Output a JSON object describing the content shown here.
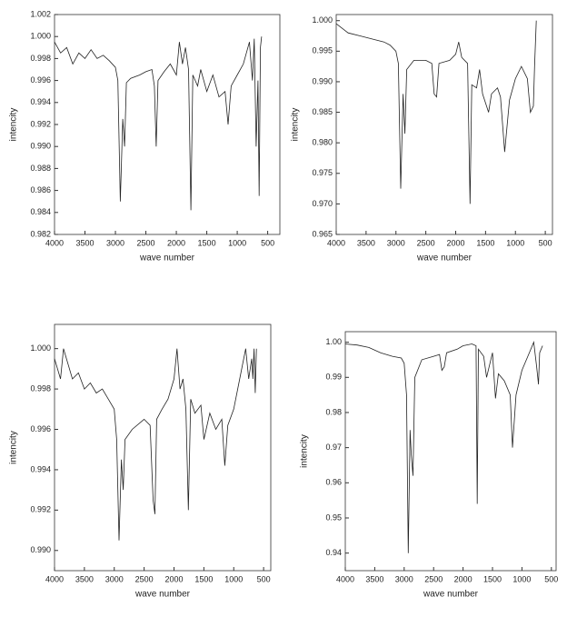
{
  "chart_data": [
    {
      "type": "line",
      "xlabel": "wave number",
      "ylabel": "intencity",
      "color": "#222222",
      "grid": false,
      "xlim": [
        4000,
        300
      ],
      "xticks": [
        4000,
        3500,
        3000,
        2500,
        2000,
        1500,
        1000,
        500
      ],
      "ylim": [
        0.982,
        1.002
      ],
      "yticks": [
        0.982,
        0.984,
        0.986,
        0.988,
        {
          "value": 0.99,
          "label": "0.990"
        },
        0.992,
        0.994,
        0.996,
        0.998,
        {
          "value": 1,
          "label": "1.000"
        },
        1.002
      ],
      "x": [
        4000,
        3900,
        3800,
        3700,
        3600,
        3500,
        3400,
        3300,
        3200,
        3100,
        3000,
        2960,
        2920,
        2880,
        2850,
        2820,
        2750,
        2600,
        2500,
        2400,
        2360,
        2330,
        2300,
        2200,
        2100,
        2000,
        1950,
        1900,
        1850,
        1800,
        1760,
        1730,
        1650,
        1600,
        1500,
        1400,
        1300,
        1200,
        1150,
        1100,
        1000,
        900,
        800,
        750,
        720,
        690,
        660,
        640,
        620,
        600
      ],
      "values": [
        0.9995,
        0.9985,
        0.999,
        0.9975,
        0.9985,
        0.998,
        0.9988,
        0.998,
        0.9983,
        0.9978,
        0.9972,
        0.996,
        0.985,
        0.9925,
        0.99,
        0.9958,
        0.9962,
        0.9965,
        0.9968,
        0.997,
        0.9955,
        0.99,
        0.996,
        0.9968,
        0.9975,
        0.9965,
        0.9995,
        0.9975,
        0.999,
        0.997,
        0.9842,
        0.9965,
        0.9955,
        0.997,
        0.995,
        0.9965,
        0.9945,
        0.995,
        0.992,
        0.9955,
        0.9965,
        0.9975,
        0.9995,
        0.996,
        0.9998,
        0.99,
        0.996,
        0.9855,
        0.999,
        1.0
      ]
    },
    {
      "type": "line",
      "xlabel": "wave number",
      "ylabel": "intencity",
      "color": "#222222",
      "grid": false,
      "xlim": [
        4000,
        380
      ],
      "xticks": [
        4000,
        3500,
        3000,
        2500,
        2000,
        1500,
        1000,
        500
      ],
      "ylim": [
        0.965,
        1.001
      ],
      "yticks": [
        0.965,
        {
          "value": 0.97,
          "label": "0.970"
        },
        0.975,
        {
          "value": 0.98,
          "label": "0.980"
        },
        0.985,
        {
          "value": 0.99,
          "label": "0.990"
        },
        0.995,
        {
          "value": 1,
          "label": "1.000"
        }
      ],
      "x": [
        4000,
        3800,
        3600,
        3400,
        3200,
        3100,
        3000,
        2960,
        2920,
        2880,
        2850,
        2820,
        2700,
        2500,
        2400,
        2360,
        2320,
        2280,
        2100,
        2000,
        1950,
        1900,
        1800,
        1760,
        1730,
        1650,
        1600,
        1550,
        1450,
        1400,
        1300,
        1250,
        1180,
        1100,
        1000,
        900,
        800,
        750,
        700,
        680,
        650
      ],
      "values": [
        0.9995,
        0.998,
        0.9975,
        0.997,
        0.9965,
        0.996,
        0.995,
        0.993,
        0.9725,
        0.988,
        0.9815,
        0.992,
        0.9935,
        0.9935,
        0.993,
        0.988,
        0.9875,
        0.993,
        0.9935,
        0.9945,
        0.9965,
        0.994,
        0.993,
        0.97,
        0.9895,
        0.989,
        0.992,
        0.988,
        0.985,
        0.988,
        0.989,
        0.9875,
        0.9785,
        0.987,
        0.9905,
        0.9925,
        0.9905,
        0.985,
        0.986,
        0.9925,
        1.0
      ]
    },
    {
      "type": "line",
      "xlabel": "wave number",
      "ylabel": "intencity",
      "color": "#222222",
      "grid": false,
      "xlim": [
        4000,
        380
      ],
      "xticks": [
        4000,
        3500,
        3000,
        2500,
        2000,
        1500,
        1000,
        500
      ],
      "ylim": [
        0.989,
        1.0012
      ],
      "yticks": [
        {
          "value": 0.99,
          "label": "0.990"
        },
        0.992,
        0.994,
        0.996,
        0.998,
        {
          "value": 1,
          "label": "1.000"
        }
      ],
      "x": [
        4000,
        3900,
        3850,
        3700,
        3600,
        3500,
        3400,
        3300,
        3200,
        3100,
        3000,
        2960,
        2920,
        2880,
        2850,
        2820,
        2700,
        2500,
        2400,
        2350,
        2320,
        2290,
        2200,
        2100,
        2000,
        1950,
        1900,
        1850,
        1800,
        1760,
        1720,
        1650,
        1550,
        1500,
        1400,
        1300,
        1200,
        1150,
        1100,
        1000,
        900,
        800,
        750,
        700,
        680,
        660,
        640,
        620
      ],
      "values": [
        0.9995,
        0.9985,
        1.0,
        0.9985,
        0.9988,
        0.998,
        0.9983,
        0.9978,
        0.998,
        0.9975,
        0.997,
        0.9955,
        0.9905,
        0.9945,
        0.993,
        0.9955,
        0.996,
        0.9965,
        0.9962,
        0.9925,
        0.9918,
        0.9965,
        0.997,
        0.9975,
        0.9985,
        1.0,
        0.998,
        0.9985,
        0.997,
        0.992,
        0.9975,
        0.9968,
        0.9972,
        0.9955,
        0.9968,
        0.996,
        0.9965,
        0.9942,
        0.9962,
        0.997,
        0.9985,
        1.0,
        0.9985,
        0.9995,
        0.9985,
        1.0,
        0.9978,
        1.0
      ]
    },
    {
      "type": "line",
      "xlabel": "wave number",
      "ylabel": "intencity",
      "color": "#222222",
      "grid": false,
      "xlim": [
        4000,
        420
      ],
      "xticks": [
        4000,
        3500,
        3000,
        2500,
        2000,
        1500,
        1000,
        500
      ],
      "ylim": [
        0.935,
        1.003
      ],
      "yticks": [
        0.94,
        0.95,
        0.96,
        0.97,
        0.98,
        0.99,
        {
          "value": 1,
          "label": "1.00"
        }
      ],
      "x": [
        4000,
        3800,
        3600,
        3400,
        3200,
        3050,
        3000,
        2960,
        2930,
        2900,
        2880,
        2850,
        2820,
        2700,
        2500,
        2400,
        2360,
        2320,
        2280,
        2100,
        2000,
        1850,
        1780,
        1760,
        1740,
        1650,
        1600,
        1500,
        1450,
        1400,
        1300,
        1200,
        1160,
        1100,
        1000,
        900,
        800,
        750,
        720,
        700,
        650
      ],
      "values": [
        0.9995,
        0.9992,
        0.9985,
        0.997,
        0.996,
        0.9955,
        0.994,
        0.985,
        0.94,
        0.975,
        0.968,
        0.962,
        0.99,
        0.995,
        0.996,
        0.9965,
        0.992,
        0.993,
        0.997,
        0.998,
        0.999,
        0.9995,
        0.999,
        0.954,
        0.998,
        0.996,
        0.99,
        0.997,
        0.984,
        0.991,
        0.989,
        0.985,
        0.97,
        0.985,
        0.992,
        0.996,
        1.0,
        0.993,
        0.988,
        0.997,
        0.999
      ]
    }
  ]
}
